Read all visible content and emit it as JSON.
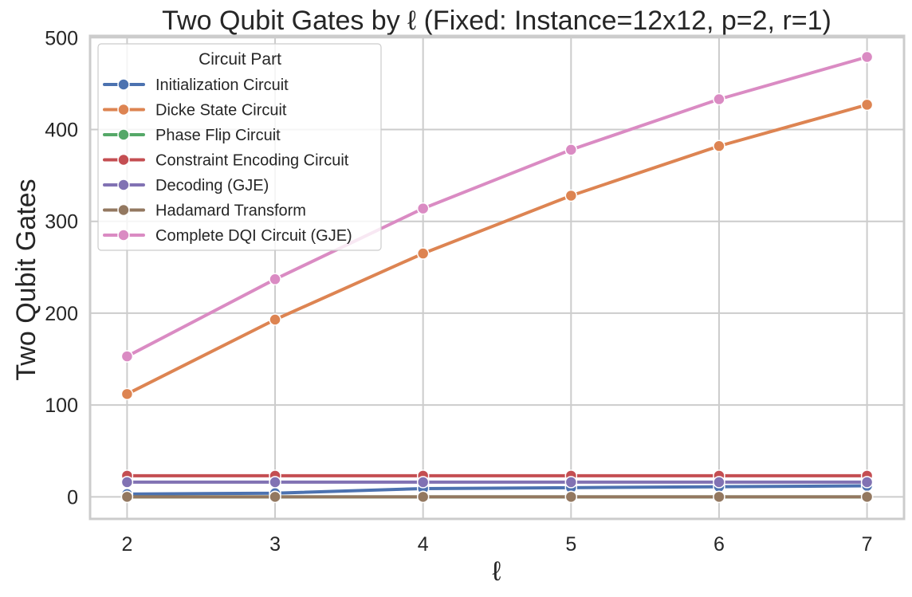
{
  "chart_data": {
    "type": "line",
    "title": "Two Qubit Gates by ℓ (Fixed: Instance=12x12, p=2, r=1)",
    "xlabel": "ℓ",
    "ylabel": "Two Qubit Gates",
    "x": [
      2,
      3,
      4,
      5,
      6,
      7
    ],
    "xlim": [
      1.75,
      7.25
    ],
    "ylim": [
      -24,
      502
    ],
    "xticks": [
      "2",
      "3",
      "4",
      "5",
      "6",
      "7"
    ],
    "yticks": [
      "0",
      "100",
      "200",
      "300",
      "400",
      "500"
    ],
    "grid": true,
    "legend": {
      "title": "Circuit Part",
      "placement": "top-left"
    },
    "series": [
      {
        "name": "Initialization Circuit",
        "color": "#4c72b0",
        "values": [
          3,
          4,
          9,
          10,
          11,
          12
        ]
      },
      {
        "name": "Dicke State Circuit",
        "color": "#dd8452",
        "values": [
          112,
          193,
          265,
          328,
          382,
          427
        ]
      },
      {
        "name": "Phase Flip Circuit",
        "color": "#55a868",
        "values": [
          0,
          0,
          0,
          0,
          0,
          0
        ]
      },
      {
        "name": "Constraint Encoding Circuit",
        "color": "#c44e52",
        "values": [
          23,
          23,
          23,
          23,
          23,
          23
        ]
      },
      {
        "name": "Decoding (GJE)",
        "color": "#8172b3",
        "values": [
          16,
          16,
          16,
          16,
          16,
          16
        ]
      },
      {
        "name": "Hadamard Transform",
        "color": "#937860",
        "values": [
          0,
          0,
          0,
          0,
          0,
          0
        ]
      },
      {
        "name": "Complete DQI Circuit (GJE)",
        "color": "#da8bc3",
        "values": [
          153,
          237,
          314,
          378,
          433,
          479
        ]
      }
    ]
  }
}
